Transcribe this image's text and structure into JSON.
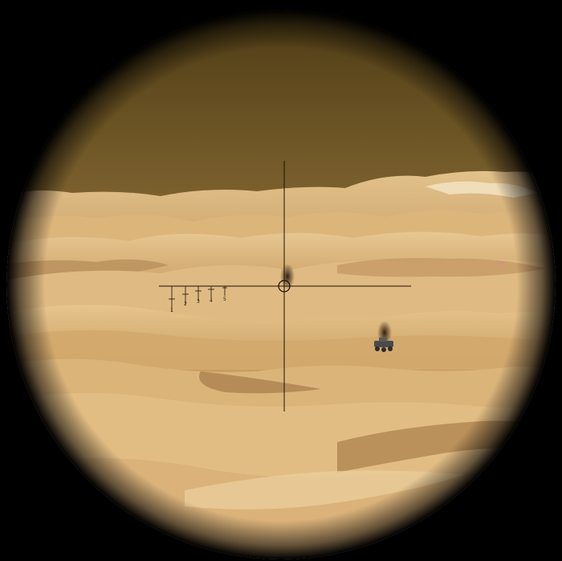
{
  "scope": {
    "range_marks": [
      "1",
      "2",
      "3",
      "4",
      "5"
    ]
  },
  "colors": {
    "sky": "#5f4a1e",
    "sky_horizon": "#8a6a32",
    "sand_light": "#e6c48e",
    "sand_mid": "#d2a86c",
    "sand_dark": "#a9824f",
    "shadow": "#7a5a34",
    "scope_border": "#000000",
    "reticle": "#1a1208"
  },
  "icons": {
    "crosshair": "crosshair-icon",
    "center_ring": "reticle-center-icon"
  }
}
